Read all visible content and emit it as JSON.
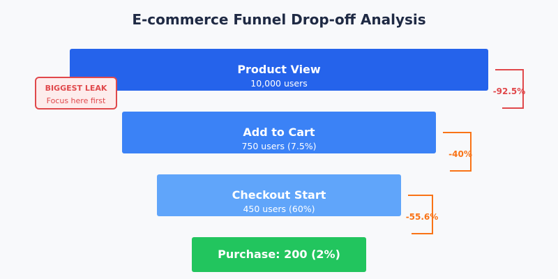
{
  "title": "E-commerce Funnel Drop-off Analysis",
  "stages": [
    {
      "label": "Product View",
      "sub": "10,000 users",
      "color": "#2563eb"
    },
    {
      "label": "Add to Cart",
      "sub": "750 users (7.5%)",
      "color": "#3b82f6"
    },
    {
      "label": "Checkout Start",
      "sub": "450 users (60%)",
      "color": "#60a5fa"
    },
    {
      "label": "Purchase: 200 (2%)",
      "sub": "",
      "color": "#22c55e"
    }
  ],
  "drops": [
    {
      "label": "-92.5%",
      "color": "#e0484b"
    },
    {
      "label": "-40%",
      "color": "#f97316"
    },
    {
      "label": "-55.6%",
      "color": "#f97316"
    }
  ],
  "callout": {
    "title": "BIGGEST LEAK",
    "subtitle": "Focus here first",
    "color": "#e0484b"
  }
}
